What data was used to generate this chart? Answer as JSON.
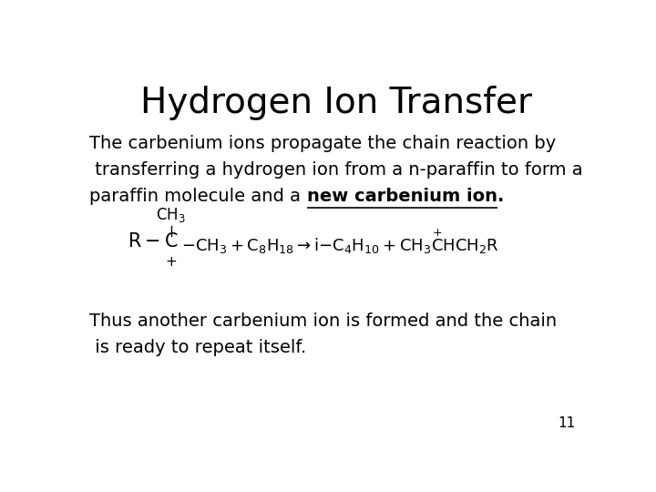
{
  "title": "Hydrogen Ion Transfer",
  "title_fontsize": 28,
  "bg_color": "#ffffff",
  "text_color": "#000000",
  "body_fontsize": 14,
  "paragraph1_line1": "The carbenium ions propagate the chain reaction by",
  "paragraph1_line2": " transferring a hydrogen ion from a n-paraffin to form a",
  "paragraph1_line3_normal": "paraffin molecule and a ",
  "paragraph1_line3_bold_underline": "new carbenium ion",
  "paragraph1_line3_period": ".",
  "paragraph2_line1": "Thus another carbenium ion is formed and the chain",
  "paragraph2_line2": " is ready to repeat itself.",
  "page_number": "11",
  "equation_fontsize": 13
}
